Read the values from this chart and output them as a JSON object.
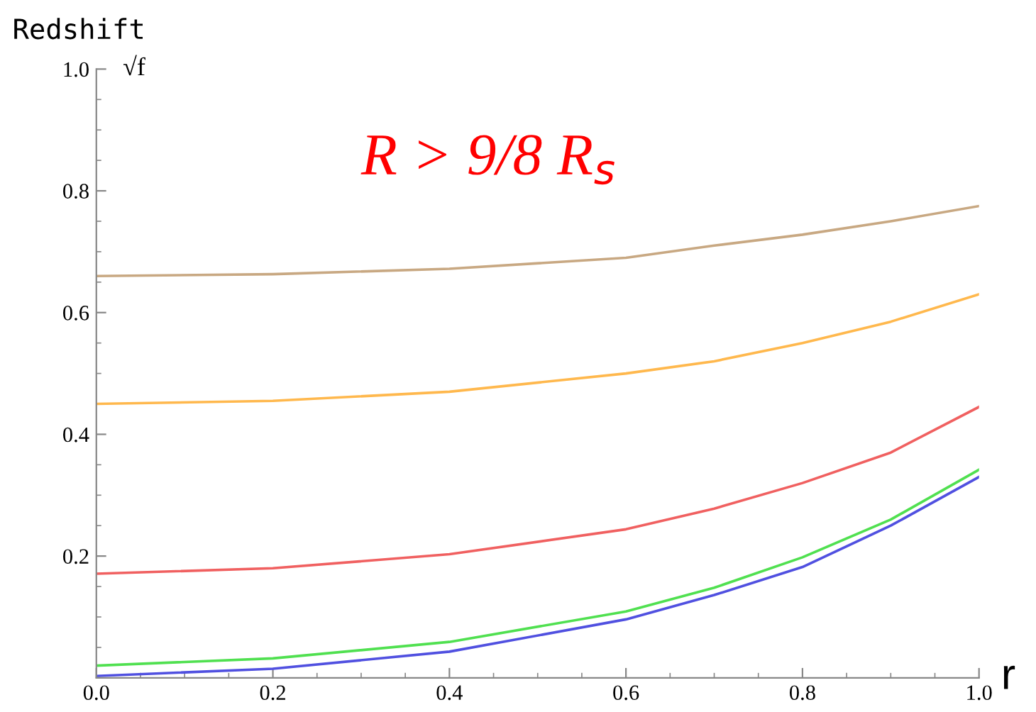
{
  "chart_data": {
    "type": "line",
    "title": "Redshift",
    "ylabel": "√f",
    "xlabel": "r",
    "annotations": [
      "R > 9/8 R$_{s}$"
    ],
    "x": [
      0,
      0.2,
      0.4,
      0.6,
      0.7,
      0.8,
      0.9,
      1.0
    ],
    "series": [
      {
        "color": "#c8a882",
        "values": [
          0.66,
          0.663,
          0.672,
          0.69,
          0.71,
          0.728,
          0.75,
          0.775
        ]
      },
      {
        "color": "#ffb84d",
        "values": [
          0.45,
          0.455,
          0.47,
          0.5,
          0.52,
          0.55,
          0.585,
          0.63
        ]
      },
      {
        "color": "#f06060",
        "values": [
          0.171,
          0.18,
          0.203,
          0.244,
          0.278,
          0.32,
          0.37,
          0.445
        ]
      },
      {
        "color": "#50e050",
        "values": [
          0.02,
          0.032,
          0.059,
          0.109,
          0.148,
          0.198,
          0.26,
          0.342
        ]
      },
      {
        "color": "#5050e0",
        "values": [
          0.003,
          0.015,
          0.043,
          0.096,
          0.136,
          0.182,
          0.25,
          0.33
        ]
      }
    ],
    "xlim": [
      0,
      1.0
    ],
    "ylim": [
      0,
      1.0
    ],
    "xticks": [
      {
        "value": 0,
        "label": "0.0"
      },
      0.2,
      0.4,
      0.6,
      0.8,
      {
        "value": 1.0,
        "label": "1.0"
      }
    ],
    "yticks": [
      0.2,
      0.4,
      0.6,
      0.8,
      {
        "value": 1.0,
        "label": "1.0"
      }
    ],
    "grid": false,
    "legend": false,
    "marker": "none",
    "line_style": "solid"
  }
}
